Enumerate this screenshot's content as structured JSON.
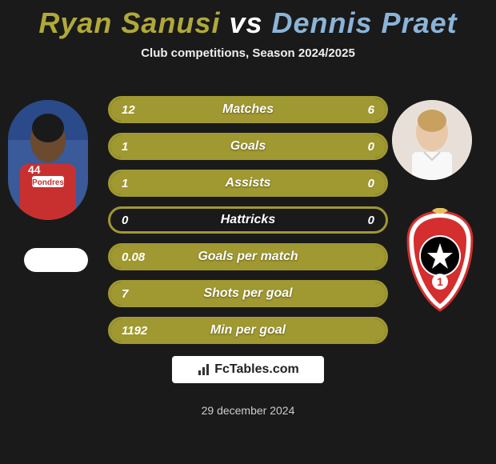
{
  "title": {
    "player1": "Ryan Sanusi",
    "vs": "vs",
    "player2": "Dennis Praet",
    "player1_color": "#b0a938",
    "player2_color": "#8ab4d8"
  },
  "subtitle": "Club competitions, Season 2024/2025",
  "stats": {
    "border_color": "#a09830",
    "fill_left_color": "#a09830",
    "fill_right_color": "#a09830",
    "empty_color": "#1a1a1a",
    "rows": [
      {
        "label": "Matches",
        "left": "12",
        "right": "6",
        "left_pct": 67,
        "right_pct": 33
      },
      {
        "label": "Goals",
        "left": "1",
        "right": "0",
        "left_pct": 100,
        "right_pct": 0
      },
      {
        "label": "Assists",
        "left": "1",
        "right": "0",
        "left_pct": 100,
        "right_pct": 0
      },
      {
        "label": "Hattricks",
        "left": "0",
        "right": "0",
        "left_pct": 0,
        "right_pct": 0
      },
      {
        "label": "Goals per match",
        "left": "0.08",
        "right": "",
        "left_pct": 100,
        "right_pct": 0
      },
      {
        "label": "Shots per goal",
        "left": "7",
        "right": "",
        "left_pct": 100,
        "right_pct": 0
      },
      {
        "label": "Min per goal",
        "left": "1192",
        "right": "",
        "left_pct": 100,
        "right_pct": 0
      }
    ]
  },
  "branding": "FcTables.com",
  "date": "29 december 2024",
  "crest": {
    "outer_color": "#d42e2e",
    "inner_color": "#ffffff",
    "ball_color": "#000000",
    "number": "1"
  }
}
